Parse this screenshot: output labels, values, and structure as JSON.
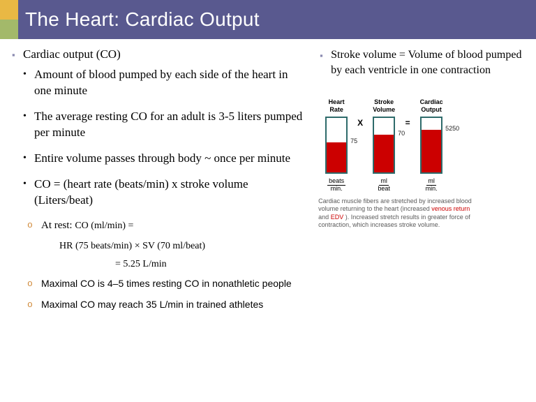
{
  "title": "The Heart: Cardiac Output",
  "accent_colors": {
    "a1": "#e9b844",
    "a2": "#a3b96a",
    "bar": "#59598f"
  },
  "left": {
    "heading": "Cardiac output (CO)",
    "b1": "Amount of blood pumped by each side of the heart in one minute",
    "b2": "The average resting CO for an adult is 3-5 liters pumped per minute",
    "b3": "Entire volume passes through body ~ once per minute",
    "b4": "CO = (heart rate (beats/min) x stroke volume (Liters/beat)",
    "o1_lead": "At rest: ",
    "o1_tail": "CO (ml/min) =",
    "f1": "HR (75 beats/min) × SV (70 ml/beat)",
    "f2": "= 5.25 L/min",
    "o2": "Maximal CO is 4–5 times resting CO in nonathletic people",
    "o3": "Maximal CO may reach 35 L/min in trained athletes"
  },
  "right": {
    "heading": "Stroke volume = Volume of blood pumped by each ventricle in one contraction"
  },
  "chart": {
    "border_color": "#2e6b6b",
    "fill_color": "#cc0000",
    "bars": [
      {
        "label": "Heart\nRate",
        "value": "75",
        "fill_pct": 55,
        "unit_top": "beats",
        "unit_bot": "min."
      },
      {
        "label": "Stroke\nVolume",
        "value": "70",
        "fill_pct": 70,
        "unit_top": "ml",
        "unit_bot": "beat"
      },
      {
        "label": "Cardiac\nOutput",
        "value": "5250",
        "fill_pct": 78,
        "unit_top": "ml",
        "unit_bot": "min."
      }
    ],
    "ops": [
      "X",
      "="
    ],
    "caption_pre": "Cardiac muscle fibers are stretched by increased blood volume returning to the heart (increased ",
    "caption_r1": "venous return",
    "caption_mid": " and ",
    "caption_r2": "EDV",
    "caption_post": " ). Increased stretch results in greater force of contraction, which increases stroke volume."
  }
}
